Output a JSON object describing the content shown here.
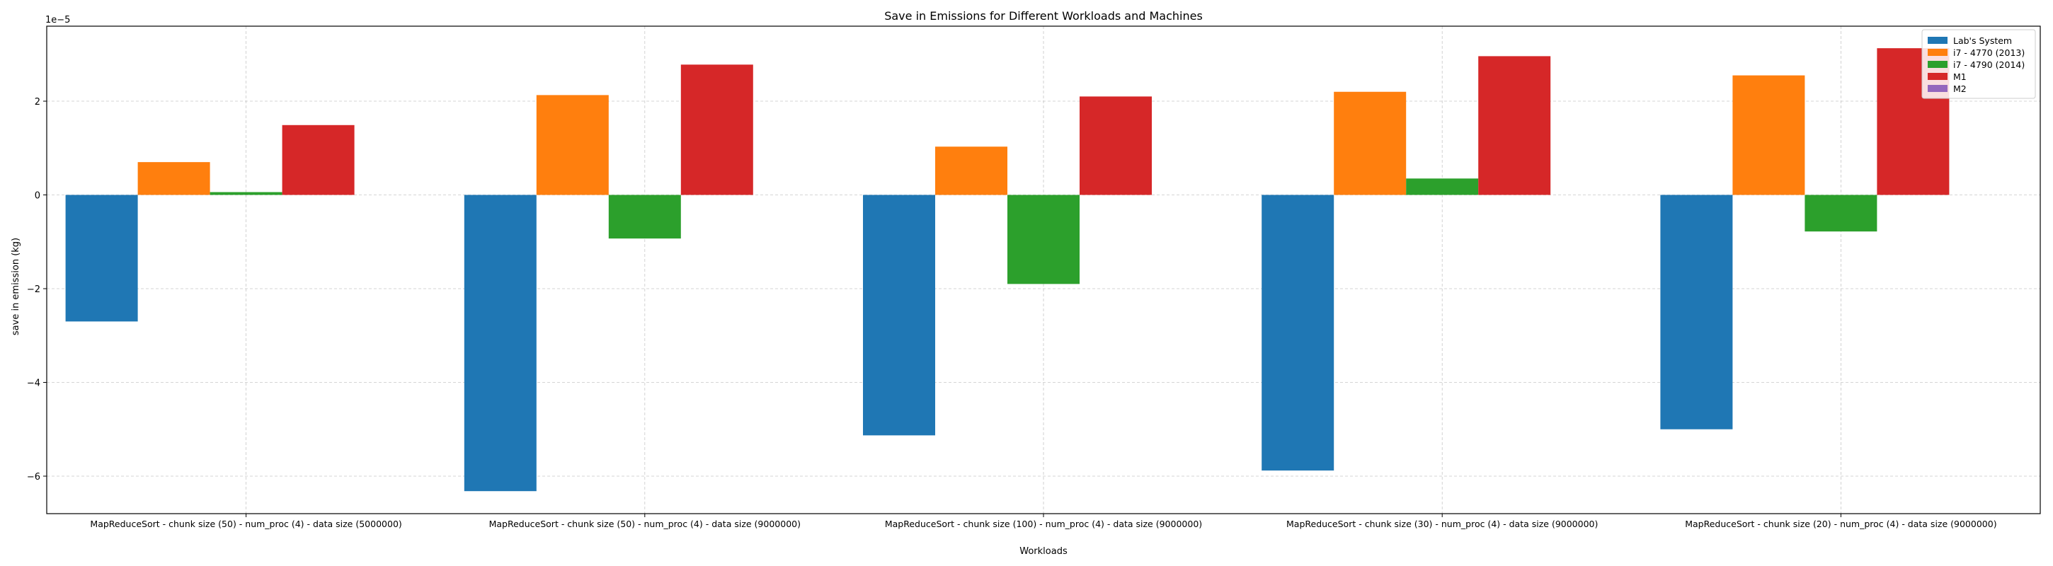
{
  "chart_data": {
    "type": "bar",
    "title": "Save in Emissions for Different Workloads and Machines",
    "xlabel": "Workloads",
    "ylabel": "save in emission (kg)",
    "y_multiplier_label": "1e−5",
    "y_scale": 1e-05,
    "ylim": [
      -6.8,
      3.6
    ],
    "yticks": [
      -6,
      -4,
      -2,
      0,
      2
    ],
    "ytick_labels": [
      "−6",
      "−4",
      "−2",
      "0",
      "2"
    ],
    "grid": true,
    "legend_position": "top-right",
    "categories": [
      "MapReduceSort - chunk size (50) - num_proc (4) - data size (5000000)",
      "MapReduceSort - chunk size (50) - num_proc (4) - data size (9000000)",
      "MapReduceSort - chunk size (100) - num_proc (4) - data size (9000000)",
      "MapReduceSort - chunk size (30) - num_proc (4) - data size (9000000)",
      "MapReduceSort - chunk size (20) - num_proc (4) - data size (9000000)"
    ],
    "series": [
      {
        "name": "Lab's System",
        "color": "#1f77b4",
        "values": [
          -2.7,
          -6.32,
          -5.13,
          -5.88,
          -5.0
        ]
      },
      {
        "name": "i7 - 4770 (2013)",
        "color": "#ff7f0e",
        "values": [
          0.7,
          2.13,
          1.03,
          2.2,
          2.55
        ]
      },
      {
        "name": "i7 - 4790 (2014)",
        "color": "#2ca02c",
        "values": [
          0.06,
          -0.93,
          -1.9,
          0.35,
          -0.78
        ]
      },
      {
        "name": "M1",
        "color": "#d62728",
        "values": [
          1.49,
          2.78,
          2.1,
          2.96,
          3.13
        ]
      },
      {
        "name": "M2",
        "color": "#9467bd",
        "values": [
          0,
          0,
          0,
          0,
          0
        ]
      }
    ]
  }
}
